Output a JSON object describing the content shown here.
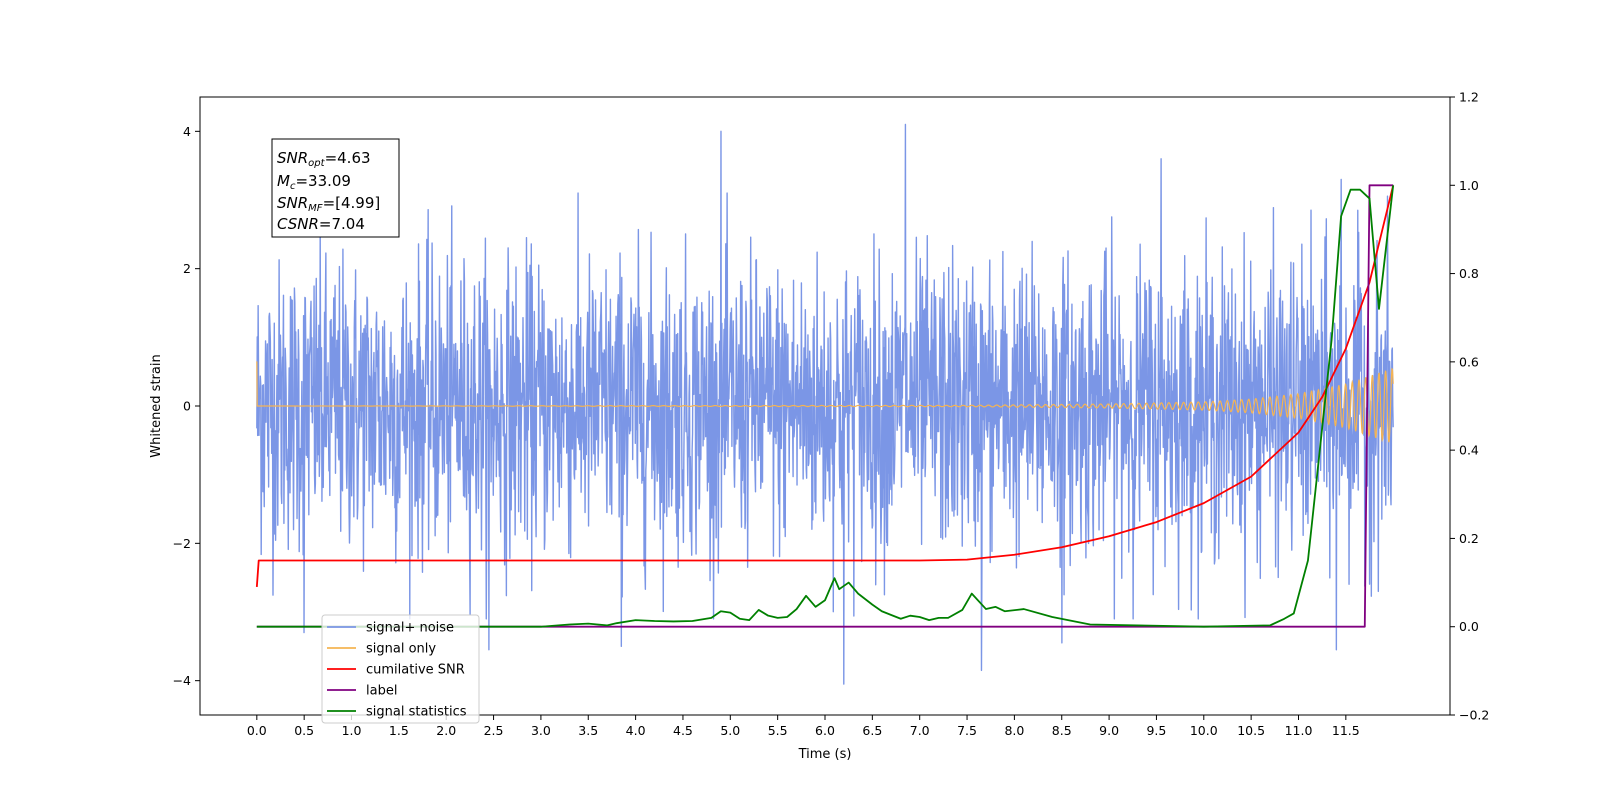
{
  "chart_data": {
    "type": "line",
    "title": "",
    "xlabel": "Time (s)",
    "ylabel_left": "Whitened strain",
    "ylabel_right": "",
    "xlim": [
      -0.6,
      12.6
    ],
    "ylim_left": [
      -4.5,
      4.5
    ],
    "ylim_right": [
      -0.2,
      1.2
    ],
    "x_ticks": [
      "0.0",
      "0.5",
      "1.0",
      "1.5",
      "2.0",
      "2.5",
      "3.0",
      "3.5",
      "4.0",
      "4.5",
      "5.0",
      "5.5",
      "6.0",
      "6.5",
      "7.0",
      "7.5",
      "8.0",
      "8.5",
      "9.0",
      "9.5",
      "10.0",
      "10.5",
      "11.0",
      "11.5"
    ],
    "y_left_ticks": [
      "−4",
      "−2",
      "0",
      "2",
      "4"
    ],
    "y_right_ticks": [
      "−0.2",
      "0.0",
      "0.2",
      "0.4",
      "0.6",
      "0.8",
      "1.0",
      "1.2"
    ],
    "grid": false,
    "legend_position": "lower-left",
    "stats_box": {
      "snr_opt": {
        "label": "SNR",
        "sub": "opt",
        "value": "=4.63"
      },
      "mc": {
        "label": "M",
        "sub": "c",
        "value": "=33.09"
      },
      "snr_mf": {
        "label": "SNR",
        "sub": "MF",
        "value": "=[4.99]"
      },
      "csnr": {
        "label": "CSNR",
        "value": "=7.04"
      }
    },
    "series": [
      {
        "name": "signal+ noise",
        "axis": "left",
        "color": "#7b96e6",
        "x_range": [
          0.0,
          12.0
        ],
        "amplitude_std": 1.0,
        "peaks": [
          [
            4.9,
            4.0
          ],
          [
            6.85,
            4.1
          ],
          [
            9.55,
            3.6
          ],
          [
            11.45,
            3.3
          ],
          [
            6.2,
            -4.05
          ],
          [
            7.65,
            -3.85
          ],
          [
            3.85,
            -3.5
          ],
          [
            11.4,
            -3.55
          ],
          [
            8.5,
            -3.45
          ],
          [
            2.45,
            -3.55
          ],
          [
            0.5,
            -3.3
          ]
        ]
      },
      {
        "name": "signal only",
        "axis": "left",
        "color": "#f5b453",
        "x_range": [
          0.0,
          12.0
        ],
        "envelope": {
          "x": [
            0.0,
            7.5,
            9.0,
            10.0,
            10.5,
            11.0,
            11.5,
            12.0
          ],
          "amp": [
            0.0,
            0.01,
            0.03,
            0.06,
            0.1,
            0.18,
            0.32,
            0.55
          ]
        },
        "initial_spike": 0.65
      },
      {
        "name": "cumilative SNR",
        "axis": "right",
        "color": "#ff0000",
        "x": [
          0.0,
          0.02,
          7.0,
          7.5,
          8.0,
          8.5,
          9.0,
          9.5,
          10.0,
          10.5,
          11.0,
          11.25,
          11.5,
          11.75,
          12.0
        ],
        "values": [
          0.09,
          0.15,
          0.15,
          0.152,
          0.163,
          0.18,
          0.205,
          0.237,
          0.28,
          0.34,
          0.44,
          0.52,
          0.63,
          0.78,
          1.0
        ]
      },
      {
        "name": "label",
        "axis": "right",
        "color": "#800080",
        "x": [
          0.0,
          11.7,
          11.75,
          12.0
        ],
        "values": [
          0.0,
          0.0,
          1.0,
          1.0
        ]
      },
      {
        "name": "signal statistics",
        "axis": "right",
        "color": "#008000",
        "x": [
          0.0,
          1.0,
          3.0,
          3.3,
          3.5,
          3.7,
          3.8,
          4.0,
          4.2,
          4.4,
          4.6,
          4.8,
          4.9,
          5.0,
          5.1,
          5.2,
          5.3,
          5.4,
          5.5,
          5.6,
          5.7,
          5.8,
          5.9,
          6.0,
          6.1,
          6.15,
          6.25,
          6.35,
          6.5,
          6.6,
          6.8,
          6.9,
          7.0,
          7.1,
          7.2,
          7.3,
          7.45,
          7.55,
          7.7,
          7.8,
          7.9,
          8.1,
          8.4,
          8.8,
          10.0,
          10.7,
          10.85,
          10.95,
          11.1,
          11.2,
          11.35,
          11.45,
          11.55,
          11.65,
          11.75,
          11.85,
          12.0
        ],
        "values": [
          0.0,
          0.0,
          0.0,
          0.005,
          0.007,
          0.003,
          0.008,
          0.015,
          0.013,
          0.012,
          0.013,
          0.02,
          0.035,
          0.032,
          0.018,
          0.015,
          0.038,
          0.025,
          0.02,
          0.022,
          0.04,
          0.07,
          0.045,
          0.06,
          0.11,
          0.085,
          0.1,
          0.075,
          0.05,
          0.035,
          0.018,
          0.025,
          0.022,
          0.015,
          0.02,
          0.02,
          0.038,
          0.075,
          0.04,
          0.045,
          0.035,
          0.04,
          0.022,
          0.005,
          0.0,
          0.003,
          0.018,
          0.03,
          0.15,
          0.35,
          0.65,
          0.93,
          0.99,
          0.99,
          0.97,
          0.72,
          1.0
        ]
      }
    ],
    "legend": [
      {
        "label": "signal+ noise",
        "color": "#7b96e6"
      },
      {
        "label": "signal only",
        "color": "#f5b453"
      },
      {
        "label": "cumilative SNR",
        "color": "#ff0000"
      },
      {
        "label": "label",
        "color": "#800080"
      },
      {
        "label": "signal statistics",
        "color": "#008000"
      }
    ]
  }
}
